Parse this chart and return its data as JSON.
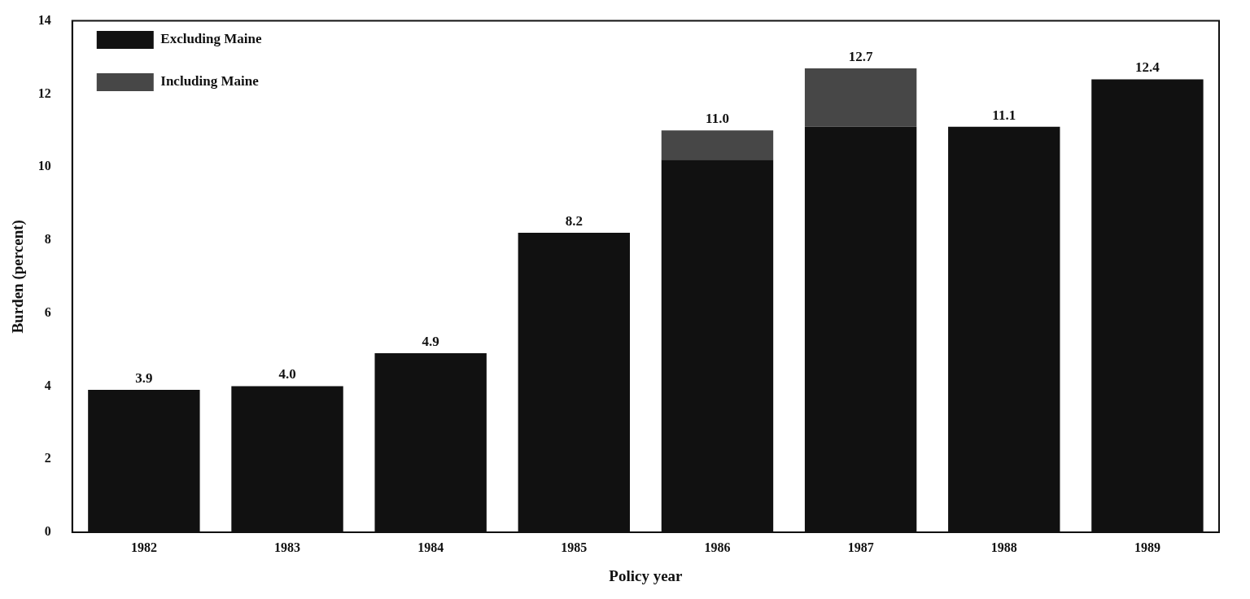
{
  "chart_data": {
    "type": "bar",
    "xlabel": "Policy year",
    "ylabel": "Burden (percent)",
    "categories": [
      "1982",
      "1983",
      "1984",
      "1985",
      "1986",
      "1987",
      "1988",
      "1989"
    ],
    "stacked": true,
    "series": [
      {
        "name": "Excluding Maine",
        "color": "#111111",
        "values": [
          3.9,
          4.0,
          4.9,
          8.2,
          10.2,
          11.1,
          11.1,
          12.4
        ]
      },
      {
        "name": "Including Maine",
        "color": "#474747",
        "values": [
          0,
          0,
          0,
          0,
          0.8,
          1.6,
          0,
          0
        ]
      }
    ],
    "totals": [
      "3.9",
      "4.0",
      "4.9",
      "8.2",
      "11.0",
      "12.7",
      "11.1",
      "12.4"
    ],
    "ylim": [
      0,
      14
    ],
    "yticks": [
      0,
      2,
      4,
      6,
      8,
      10,
      12,
      14
    ],
    "grid": false,
    "legend": "top left"
  }
}
